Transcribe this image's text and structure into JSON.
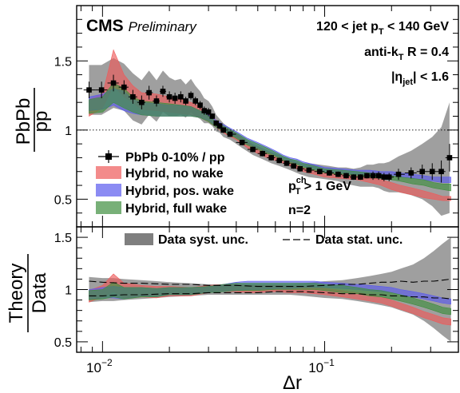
{
  "chart_data": {
    "type": "line",
    "xscale": "log",
    "xlabel": "Δr",
    "x_tick_labels": [
      {
        "base": "10",
        "exp": "−2",
        "value": 0.01
      },
      {
        "base": "10",
        "exp": "−1",
        "value": 0.1
      }
    ],
    "colors": {
      "data": "#000000",
      "data_syst": "#7f7f7f",
      "no_wake": "#ee5a5a",
      "pos_wake": "#5a5aee",
      "full_wake": "#3f8f3f"
    },
    "top_panel": {
      "ylabel_num": "PbPb",
      "ylabel_den": "pp",
      "ylim": [
        0.3,
        1.9
      ],
      "y_tick_labels": [
        "0.5",
        "1",
        "1.5"
      ],
      "y_ticks": [
        0.5,
        1.0,
        1.5
      ],
      "reference_line": 1.0,
      "logo": "CMS",
      "logo_sub": "Preliminary",
      "annotations": {
        "jet_pt": {
          "pre": "120 < jet p",
          "sub": "T",
          "post": " < 140 GeV"
        },
        "algo": {
          "pre": "anti-k",
          "sub": "T",
          "post": " R = 0.4"
        },
        "eta": {
          "pre": "|η",
          "sub": "jet",
          "post": "| < 1.6"
        },
        "track_pt": {
          "pre": "p",
          "sub": "T",
          "sup": "ch",
          "post": " > 1 GeV"
        },
        "n": "n=2"
      },
      "legend": [
        {
          "label": "PbPb 0-10% / pp",
          "kind": "marker"
        },
        {
          "label": "Hybrid, no wake",
          "kind": "band",
          "color_key": "no_wake"
        },
        {
          "label": "Hybrid, pos. wake",
          "kind": "band",
          "color_key": "pos_wake"
        },
        {
          "label": "Hybrid, full wake",
          "kind": "band",
          "color_key": "full_wake"
        }
      ],
      "data": {
        "x": [
          0.0087,
          0.0099,
          0.0112,
          0.0125,
          0.0137,
          0.015,
          0.0162,
          0.0175,
          0.0187,
          0.02,
          0.0212,
          0.0225,
          0.0237,
          0.025,
          0.0262,
          0.0275,
          0.0287,
          0.03,
          0.0312,
          0.0325,
          0.0337,
          0.035,
          0.0375,
          0.0425,
          0.0475,
          0.0525,
          0.0575,
          0.0625,
          0.0675,
          0.0725,
          0.0775,
          0.085,
          0.095,
          0.105,
          0.115,
          0.125,
          0.135,
          0.145,
          0.155,
          0.165,
          0.175,
          0.185,
          0.195,
          0.215,
          0.245,
          0.275,
          0.305,
          0.335,
          0.365
        ],
        "y": [
          1.29,
          1.29,
          1.34,
          1.31,
          1.24,
          1.2,
          1.27,
          1.21,
          1.28,
          1.24,
          1.23,
          1.24,
          1.21,
          1.25,
          1.21,
          1.18,
          1.14,
          1.13,
          1.1,
          1.05,
          1.03,
          1.0,
          0.97,
          0.91,
          0.86,
          0.83,
          0.8,
          0.78,
          0.76,
          0.74,
          0.72,
          0.71,
          0.7,
          0.69,
          0.68,
          0.67,
          0.66,
          0.66,
          0.67,
          0.67,
          0.67,
          0.66,
          0.66,
          0.68,
          0.69,
          0.7,
          0.7,
          0.7,
          0.8
        ],
        "stat_err": [
          0.06,
          0.06,
          0.06,
          0.05,
          0.05,
          0.05,
          0.05,
          0.04,
          0.04,
          0.04,
          0.04,
          0.04,
          0.03,
          0.03,
          0.03,
          0.03,
          0.03,
          0.03,
          0.02,
          0.02,
          0.02,
          0.02,
          0.02,
          0.02,
          0.02,
          0.02,
          0.02,
          0.02,
          0.02,
          0.02,
          0.02,
          0.02,
          0.02,
          0.02,
          0.02,
          0.02,
          0.02,
          0.02,
          0.02,
          0.03,
          0.03,
          0.03,
          0.03,
          0.04,
          0.04,
          0.05,
          0.06,
          0.08,
          0.1
        ],
        "syst_err": [
          0.18,
          0.18,
          0.18,
          0.17,
          0.17,
          0.16,
          0.16,
          0.15,
          0.15,
          0.14,
          0.13,
          0.13,
          0.12,
          0.12,
          0.11,
          0.1,
          0.09,
          0.08,
          0.07,
          0.06,
          0.05,
          0.05,
          0.04,
          0.04,
          0.04,
          0.04,
          0.04,
          0.04,
          0.04,
          0.04,
          0.04,
          0.05,
          0.05,
          0.05,
          0.05,
          0.06,
          0.06,
          0.07,
          0.08,
          0.08,
          0.09,
          0.1,
          0.11,
          0.13,
          0.16,
          0.2,
          0.25,
          0.32,
          0.4
        ]
      },
      "theory": [
        {
          "key": "no_wake",
          "x": [
            0.0087,
            0.01,
            0.0112,
            0.0125,
            0.0137,
            0.015,
            0.0175,
            0.02,
            0.0225,
            0.025,
            0.0275,
            0.03,
            0.0325,
            0.035,
            0.04,
            0.045,
            0.05,
            0.055,
            0.06,
            0.065,
            0.07,
            0.075,
            0.08,
            0.09,
            0.1,
            0.12,
            0.14,
            0.16,
            0.18,
            0.2,
            0.22,
            0.25,
            0.28,
            0.31,
            0.34,
            0.37
          ],
          "lo": [
            1.1,
            1.16,
            1.32,
            1.24,
            1.2,
            1.15,
            1.14,
            1.13,
            1.12,
            1.11,
            1.09,
            1.06,
            1.02,
            0.98,
            0.93,
            0.87,
            0.83,
            0.8,
            0.78,
            0.76,
            0.74,
            0.72,
            0.7,
            0.68,
            0.66,
            0.65,
            0.64,
            0.62,
            0.6,
            0.57,
            0.55,
            0.53,
            0.51,
            0.5,
            0.49,
            0.49
          ],
          "hi": [
            1.22,
            1.26,
            1.58,
            1.4,
            1.32,
            1.27,
            1.26,
            1.24,
            1.22,
            1.2,
            1.17,
            1.12,
            1.07,
            1.03,
            0.97,
            0.91,
            0.87,
            0.84,
            0.81,
            0.79,
            0.77,
            0.75,
            0.73,
            0.71,
            0.69,
            0.68,
            0.67,
            0.66,
            0.64,
            0.62,
            0.6,
            0.58,
            0.56,
            0.54,
            0.52,
            0.52
          ]
        },
        {
          "key": "pos_wake",
          "x": [
            0.0087,
            0.01,
            0.0112,
            0.0125,
            0.0137,
            0.015,
            0.0175,
            0.02,
            0.0225,
            0.025,
            0.0275,
            0.03,
            0.0325,
            0.035,
            0.04,
            0.045,
            0.05,
            0.055,
            0.06,
            0.065,
            0.07,
            0.075,
            0.08,
            0.09,
            0.1,
            0.12,
            0.14,
            0.16,
            0.18,
            0.2,
            0.22,
            0.25,
            0.28,
            0.31,
            0.34,
            0.37
          ],
          "lo": [
            1.14,
            1.15,
            1.18,
            1.14,
            1.12,
            1.11,
            1.1,
            1.1,
            1.1,
            1.1,
            1.09,
            1.07,
            1.03,
            0.99,
            0.95,
            0.9,
            0.87,
            0.84,
            0.82,
            0.79,
            0.77,
            0.76,
            0.74,
            0.72,
            0.7,
            0.69,
            0.68,
            0.68,
            0.67,
            0.67,
            0.66,
            0.65,
            0.64,
            0.63,
            0.62,
            0.62
          ],
          "hi": [
            1.24,
            1.26,
            1.3,
            1.28,
            1.22,
            1.2,
            1.19,
            1.18,
            1.18,
            1.17,
            1.14,
            1.11,
            1.07,
            1.04,
            0.99,
            0.94,
            0.91,
            0.88,
            0.85,
            0.82,
            0.8,
            0.79,
            0.77,
            0.75,
            0.73,
            0.72,
            0.71,
            0.71,
            0.7,
            0.7,
            0.69,
            0.68,
            0.67,
            0.66,
            0.66,
            0.66
          ]
        },
        {
          "key": "full_wake",
          "x": [
            0.0087,
            0.01,
            0.0112,
            0.0125,
            0.0137,
            0.015,
            0.0175,
            0.02,
            0.0225,
            0.025,
            0.0275,
            0.03,
            0.0325,
            0.035,
            0.04,
            0.045,
            0.05,
            0.055,
            0.06,
            0.065,
            0.07,
            0.075,
            0.08,
            0.09,
            0.1,
            0.12,
            0.14,
            0.16,
            0.18,
            0.2,
            0.22,
            0.25,
            0.28,
            0.31,
            0.34,
            0.37
          ],
          "lo": [
            1.12,
            1.13,
            1.2,
            1.16,
            1.13,
            1.11,
            1.1,
            1.1,
            1.1,
            1.1,
            1.09,
            1.06,
            1.02,
            0.99,
            0.94,
            0.89,
            0.86,
            0.83,
            0.81,
            0.78,
            0.76,
            0.75,
            0.73,
            0.71,
            0.69,
            0.68,
            0.67,
            0.66,
            0.65,
            0.64,
            0.63,
            0.61,
            0.6,
            0.58,
            0.57,
            0.56
          ],
          "hi": [
            1.22,
            1.24,
            1.34,
            1.3,
            1.24,
            1.21,
            1.2,
            1.19,
            1.18,
            1.17,
            1.14,
            1.1,
            1.06,
            1.03,
            0.98,
            0.93,
            0.9,
            0.87,
            0.84,
            0.81,
            0.79,
            0.78,
            0.76,
            0.74,
            0.72,
            0.71,
            0.7,
            0.69,
            0.68,
            0.67,
            0.66,
            0.65,
            0.64,
            0.62,
            0.61,
            0.61
          ]
        }
      ]
    },
    "bottom_panel": {
      "ylabel_num": "Theory",
      "ylabel_den": "Data",
      "ylim": [
        0.4,
        1.6
      ],
      "y_tick_labels": [
        "0.5",
        "1",
        "1.5"
      ],
      "y_ticks": [
        0.5,
        1.0,
        1.5
      ],
      "legend": [
        {
          "label": "Data syst. unc.",
          "kind": "fill"
        },
        {
          "label": "Data stat. unc.",
          "kind": "dash"
        }
      ],
      "syst_band": {
        "x": [
          0.0087,
          0.01,
          0.0112,
          0.0125,
          0.015,
          0.0175,
          0.02,
          0.025,
          0.03,
          0.035,
          0.04,
          0.05,
          0.06,
          0.07,
          0.08,
          0.09,
          0.1,
          0.12,
          0.14,
          0.16,
          0.18,
          0.2,
          0.22,
          0.25,
          0.28,
          0.31,
          0.34,
          0.37
        ],
        "lo": [
          0.88,
          0.89,
          0.89,
          0.9,
          0.91,
          0.92,
          0.93,
          0.94,
          0.95,
          0.95,
          0.95,
          0.95,
          0.95,
          0.95,
          0.94,
          0.93,
          0.92,
          0.91,
          0.89,
          0.87,
          0.85,
          0.83,
          0.8,
          0.76,
          0.7,
          0.63,
          0.56,
          0.5
        ],
        "hi": [
          1.12,
          1.11,
          1.11,
          1.1,
          1.09,
          1.08,
          1.07,
          1.06,
          1.05,
          1.05,
          1.05,
          1.05,
          1.05,
          1.05,
          1.06,
          1.07,
          1.08,
          1.09,
          1.11,
          1.13,
          1.15,
          1.17,
          1.2,
          1.24,
          1.3,
          1.37,
          1.44,
          1.5
        ]
      },
      "stat_lines": {
        "x": [
          0.0087,
          0.01,
          0.0125,
          0.015,
          0.02,
          0.025,
          0.03,
          0.04,
          0.05,
          0.06,
          0.08,
          0.1,
          0.12,
          0.14,
          0.16,
          0.18,
          0.2,
          0.22,
          0.25,
          0.28,
          0.31,
          0.34,
          0.37
        ],
        "lo": [
          0.94,
          0.94,
          0.95,
          0.95,
          0.96,
          0.96,
          0.97,
          0.97,
          0.97,
          0.98,
          0.98,
          0.97,
          0.96,
          0.96,
          0.95,
          0.95,
          0.94,
          0.94,
          0.93,
          0.93,
          0.92,
          0.92,
          0.91
        ],
        "hi": [
          1.08,
          1.07,
          1.06,
          1.06,
          1.05,
          1.05,
          1.04,
          1.04,
          1.03,
          1.03,
          1.03,
          1.04,
          1.05,
          1.05,
          1.06,
          1.07,
          1.07,
          1.08,
          1.07,
          1.08,
          1.08,
          1.09,
          1.1
        ]
      },
      "theory": [
        {
          "key": "no_wake",
          "x": [
            0.0087,
            0.01,
            0.0112,
            0.0125,
            0.015,
            0.0175,
            0.02,
            0.025,
            0.03,
            0.035,
            0.04,
            0.045,
            0.05,
            0.06,
            0.07,
            0.08,
            0.09,
            0.1,
            0.12,
            0.14,
            0.16,
            0.18,
            0.2,
            0.22,
            0.25,
            0.28,
            0.31,
            0.34,
            0.37
          ],
          "lo": [
            0.88,
            0.93,
            0.98,
            0.92,
            0.93,
            0.92,
            0.94,
            0.94,
            0.97,
            0.98,
            0.98,
            0.97,
            0.97,
            0.98,
            0.97,
            0.97,
            0.96,
            0.95,
            0.93,
            0.91,
            0.89,
            0.87,
            0.84,
            0.81,
            0.77,
            0.73,
            0.7,
            0.67,
            0.66
          ],
          "hi": [
            0.99,
            1.04,
            1.15,
            1.06,
            1.04,
            1.03,
            1.03,
            1.02,
            1.04,
            1.05,
            1.05,
            1.04,
            1.04,
            1.04,
            1.03,
            1.03,
            1.02,
            1.01,
            0.99,
            0.97,
            0.95,
            0.93,
            0.9,
            0.87,
            0.83,
            0.79,
            0.76,
            0.73,
            0.72
          ]
        },
        {
          "key": "pos_wake",
          "x": [
            0.0087,
            0.01,
            0.0112,
            0.0125,
            0.015,
            0.0175,
            0.02,
            0.025,
            0.03,
            0.035,
            0.04,
            0.045,
            0.05,
            0.06,
            0.07,
            0.08,
            0.09,
            0.1,
            0.12,
            0.14,
            0.16,
            0.18,
            0.2,
            0.22,
            0.25,
            0.28,
            0.31,
            0.34,
            0.37
          ],
          "lo": [
            0.91,
            0.92,
            0.92,
            0.91,
            0.94,
            0.93,
            0.95,
            0.95,
            0.97,
            0.98,
            0.99,
            1.0,
            1.0,
            1.01,
            1.01,
            1.02,
            1.02,
            1.02,
            1.01,
            1.0,
            0.99,
            0.98,
            0.97,
            0.95,
            0.93,
            0.91,
            0.89,
            0.87,
            0.86
          ],
          "hi": [
            1.0,
            1.02,
            1.03,
            1.02,
            1.02,
            1.01,
            1.02,
            1.02,
            1.03,
            1.05,
            1.07,
            1.08,
            1.08,
            1.08,
            1.08,
            1.08,
            1.08,
            1.07,
            1.06,
            1.05,
            1.04,
            1.03,
            1.02,
            1.0,
            0.98,
            0.96,
            0.94,
            0.92,
            0.91
          ]
        },
        {
          "key": "full_wake",
          "x": [
            0.0087,
            0.01,
            0.0112,
            0.0125,
            0.015,
            0.0175,
            0.02,
            0.025,
            0.03,
            0.035,
            0.04,
            0.045,
            0.05,
            0.06,
            0.07,
            0.08,
            0.09,
            0.1,
            0.12,
            0.14,
            0.16,
            0.18,
            0.2,
            0.22,
            0.25,
            0.28,
            0.31,
            0.34,
            0.37
          ],
          "lo": [
            0.9,
            0.91,
            0.93,
            0.91,
            0.93,
            0.93,
            0.95,
            0.95,
            0.97,
            0.98,
            0.99,
            0.99,
            0.99,
            1.0,
            1.0,
            1.0,
            1.0,
            0.99,
            0.97,
            0.96,
            0.94,
            0.93,
            0.91,
            0.89,
            0.86,
            0.83,
            0.8,
            0.77,
            0.76
          ],
          "hi": [
            0.99,
            1.0,
            1.07,
            1.02,
            1.02,
            1.01,
            1.02,
            1.02,
            1.03,
            1.05,
            1.06,
            1.06,
            1.06,
            1.06,
            1.06,
            1.06,
            1.06,
            1.05,
            1.04,
            1.02,
            1.0,
            0.99,
            0.97,
            0.95,
            0.92,
            0.89,
            0.86,
            0.83,
            0.82
          ]
        }
      ]
    }
  }
}
